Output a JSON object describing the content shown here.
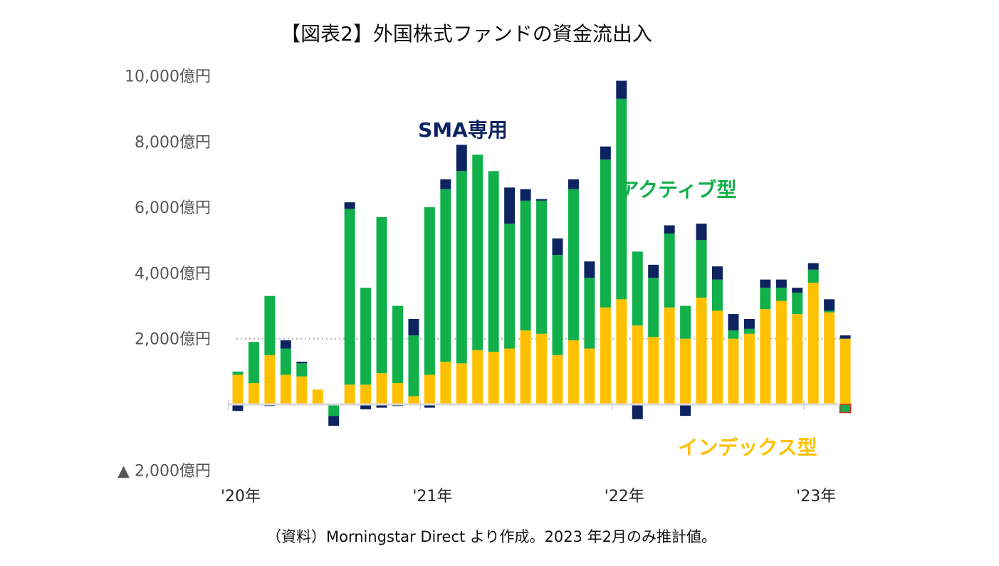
{
  "chart_data": {
    "type": "bar",
    "stacked": true,
    "title": "【図表2】外国株式ファンドの資金流出入",
    "unit": "億円",
    "ylim": [
      -2000,
      10000
    ],
    "y_ticks": [
      {
        "value": 10000,
        "label": "10,000億円"
      },
      {
        "value": 8000,
        "label": "8,000億円"
      },
      {
        "value": 6000,
        "label": "6,000億円"
      },
      {
        "value": 4000,
        "label": "4,000億円"
      },
      {
        "value": 2000,
        "label": "2,000億円"
      },
      {
        "value": -2000,
        "label": "▲ 2,000億円"
      }
    ],
    "reference_line": 2000,
    "x_ticks": [
      {
        "index": 0,
        "label": "'20年"
      },
      {
        "index": 12,
        "label": "'21年"
      },
      {
        "index": 24,
        "label": "'22年"
      },
      {
        "index": 36,
        "label": "'23年"
      }
    ],
    "series": [
      {
        "name": "インデックス型",
        "color": "#FFC000",
        "values": [
          900,
          650,
          1500,
          900,
          850,
          450,
          0,
          600,
          600,
          950,
          650,
          250,
          900,
          1300,
          1250,
          1650,
          1600,
          1700,
          2250,
          2150,
          1500,
          1950,
          1700,
          2950,
          3200,
          2400,
          2050,
          2950,
          2000,
          3250,
          2850,
          2000,
          2150,
          2900,
          3150,
          2750,
          3700,
          2800,
          2000
        ]
      },
      {
        "name": "アクティブ型",
        "color": "#12B04A",
        "values": [
          100,
          1250,
          1800,
          800,
          400,
          0,
          -350,
          5350,
          2950,
          4750,
          2350,
          1850,
          5100,
          5250,
          5850,
          5950,
          5500,
          3800,
          3950,
          4050,
          3050,
          4600,
          2150,
          4500,
          6100,
          2250,
          1800,
          2250,
          1000,
          1750,
          950,
          250,
          150,
          650,
          400,
          650,
          400,
          50,
          -250
        ]
      },
      {
        "name": "SMA専用",
        "color": "#0D2461",
        "values": [
          -200,
          0,
          -50,
          250,
          50,
          0,
          -300,
          200,
          -150,
          -100,
          -50,
          500,
          -100,
          300,
          800,
          0,
          0,
          1100,
          350,
          50,
          500,
          300,
          500,
          400,
          550,
          -450,
          400,
          250,
          -350,
          500,
          400,
          500,
          300,
          250,
          250,
          150,
          200,
          350,
          100
        ]
      }
    ],
    "annotations": [
      "SMA専用",
      "アクティブ型",
      "インデックス型"
    ],
    "source": "（資料）Morningstar Direct より作成。2023 年2月のみ推計値。"
  }
}
